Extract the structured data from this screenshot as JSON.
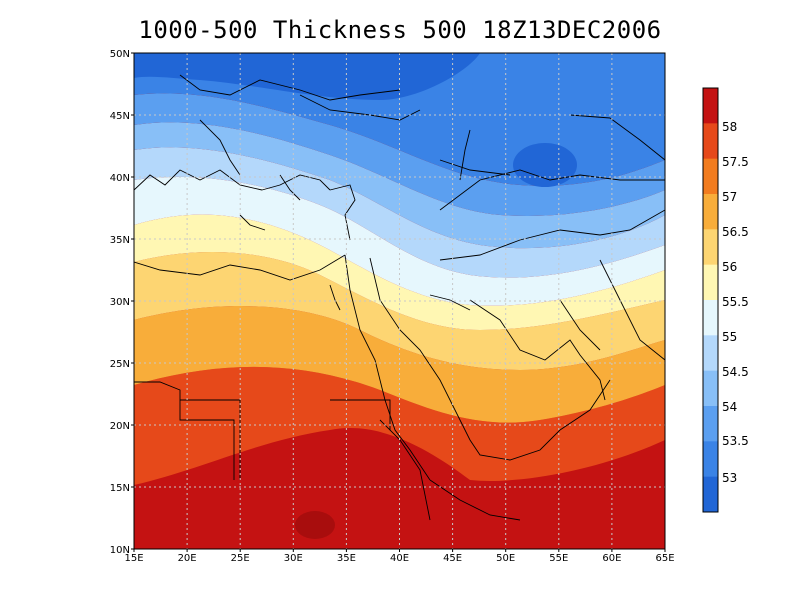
{
  "title": "1000-500 Thickness 500 18Z13DEC2006",
  "map": {
    "lon_range": [
      15,
      65
    ],
    "lat_range": [
      10,
      50
    ],
    "lon_ticks": [
      {
        "v": 15,
        "t": "15E"
      },
      {
        "v": 20,
        "t": "20E"
      },
      {
        "v": 25,
        "t": "25E"
      },
      {
        "v": 30,
        "t": "30E"
      },
      {
        "v": 35,
        "t": "35E"
      },
      {
        "v": 40,
        "t": "40E"
      },
      {
        "v": 45,
        "t": "45E"
      },
      {
        "v": 50,
        "t": "50E"
      },
      {
        "v": 55,
        "t": "55E"
      },
      {
        "v": 60,
        "t": "60E"
      },
      {
        "v": 65,
        "t": "65E"
      }
    ],
    "lat_ticks": [
      {
        "v": 10,
        "t": "10N"
      },
      {
        "v": 15,
        "t": "15N"
      },
      {
        "v": 20,
        "t": "20N"
      },
      {
        "v": 25,
        "t": "25N"
      },
      {
        "v": 30,
        "t": "30N"
      },
      {
        "v": 35,
        "t": "35N"
      },
      {
        "v": 40,
        "t": "40N"
      },
      {
        "v": 45,
        "t": "45N"
      },
      {
        "v": 50,
        "t": "50N"
      }
    ],
    "grid": "dashed"
  },
  "colorbar": {
    "labels": [
      "53",
      "53.5",
      "54",
      "54.5",
      "55",
      "55.5",
      "56",
      "56.5",
      "57",
      "57.5",
      "58"
    ],
    "colors": [
      "#2166d6",
      "#3a83e6",
      "#5b9ff0",
      "#88bff7",
      "#b4d8fb",
      "#e6f7fd",
      "#fff7b3",
      "#fdd572",
      "#f8ad3a",
      "#f27c1f",
      "#e6491a",
      "#c41212"
    ]
  }
}
